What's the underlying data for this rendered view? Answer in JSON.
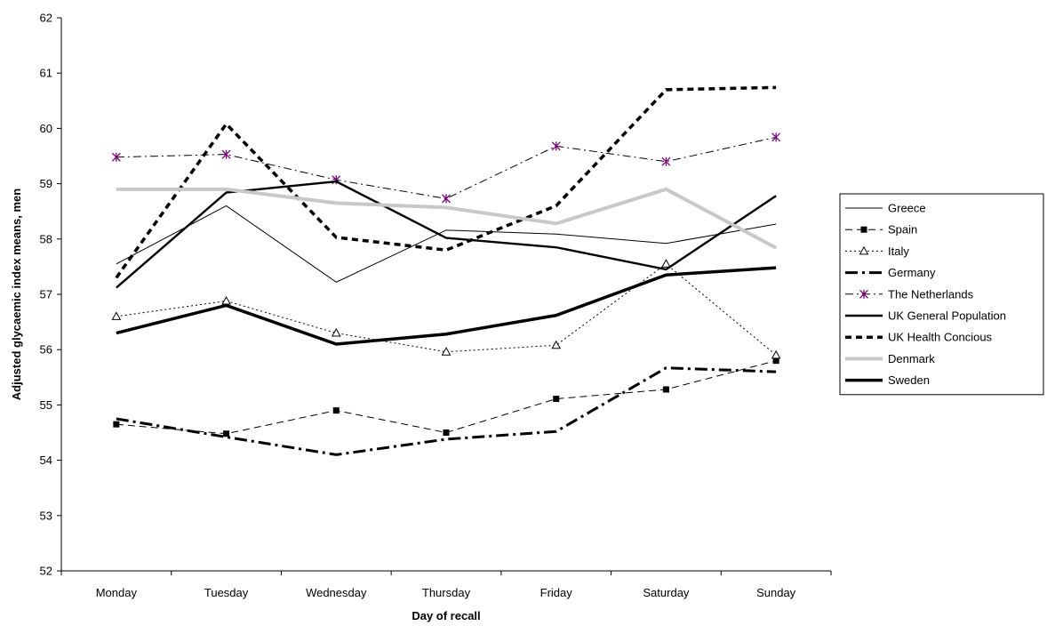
{
  "chart_data": {
    "type": "line",
    "title": "",
    "xlabel": "Day of recall",
    "ylabel": "Adjusted glycaemic index means, men",
    "categories": [
      "Monday",
      "Tuesday",
      "Wednesday",
      "Thursday",
      "Friday",
      "Saturday",
      "Sunday"
    ],
    "ylim": [
      52,
      62
    ],
    "yticks": [
      "52",
      "53",
      "54",
      "55",
      "56",
      "57",
      "58",
      "59",
      "60",
      "61",
      "62"
    ],
    "grid": false,
    "legend_position": "right",
    "series": [
      {
        "name": "Greece",
        "values": [
          57.55,
          58.6,
          57.22,
          58.16,
          58.09,
          57.92,
          58.27
        ],
        "color": "#000000",
        "style": "thin-solid",
        "marker": "none"
      },
      {
        "name": "Spain",
        "values": [
          54.65,
          54.48,
          54.9,
          54.5,
          55.11,
          55.28,
          55.8
        ],
        "color": "#000000",
        "style": "dashed",
        "marker": "square"
      },
      {
        "name": "Italy",
        "values": [
          56.6,
          56.88,
          56.3,
          55.96,
          56.08,
          57.55,
          55.9
        ],
        "color": "#000000",
        "style": "dotted",
        "marker": "triangle-open"
      },
      {
        "name": "Germany",
        "values": [
          54.75,
          54.42,
          54.1,
          54.38,
          54.52,
          55.67,
          55.6
        ],
        "color": "#000000",
        "style": "thick-dash-dot",
        "marker": "none"
      },
      {
        "name": "The Netherlands",
        "values": [
          59.48,
          59.53,
          59.07,
          58.73,
          59.68,
          59.4,
          59.84
        ],
        "color": "#000000",
        "marker_color": "#800080",
        "style": "dash-dot",
        "marker": "asterisk"
      },
      {
        "name": "UK General Population",
        "values": [
          57.12,
          58.84,
          59.04,
          58.02,
          57.85,
          57.45,
          58.78
        ],
        "color": "#000000",
        "style": "medium-solid",
        "marker": "none"
      },
      {
        "name": "UK Health Concious",
        "values": [
          57.3,
          60.08,
          58.03,
          57.8,
          58.6,
          60.7,
          60.74
        ],
        "color": "#000000",
        "style": "thick-dashed",
        "marker": "none"
      },
      {
        "name": "Denmark",
        "values": [
          58.9,
          58.9,
          58.65,
          58.57,
          58.28,
          58.9,
          57.84
        ],
        "color": "#c8c8c8",
        "style": "thick-solid",
        "marker": "none"
      },
      {
        "name": "Sweden",
        "values": [
          56.3,
          56.8,
          56.1,
          56.28,
          56.62,
          57.35,
          57.48
        ],
        "color": "#000000",
        "style": "heavy-solid",
        "marker": "none"
      }
    ]
  }
}
